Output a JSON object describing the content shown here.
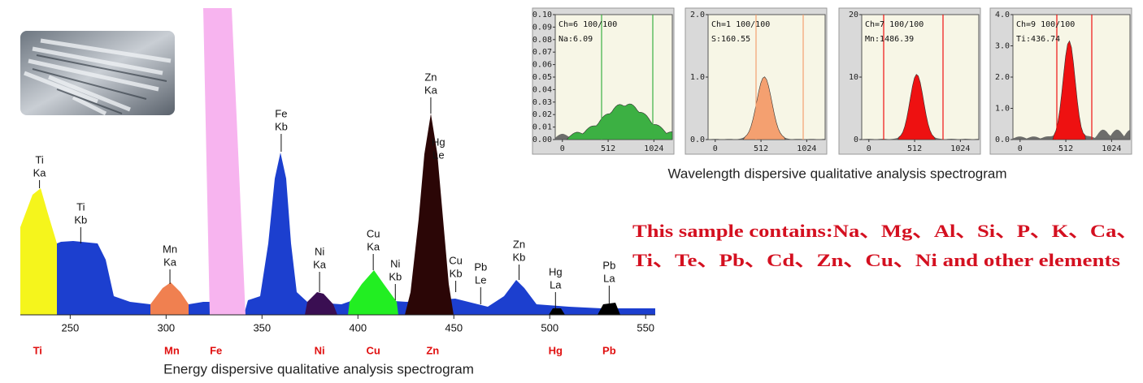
{
  "eds": {
    "caption": "Energy dispersive qualitative analysis spectrogram",
    "xlim": [
      224,
      555
    ],
    "xticks": [
      250,
      300,
      350,
      400,
      450,
      500,
      550
    ],
    "peaks": [
      {
        "lines": [
          "Ti",
          "Ka"
        ],
        "x": 234
      },
      {
        "lines": [
          "Ti",
          "Kb"
        ],
        "x": 255.5
      },
      {
        "lines": [
          "Mn",
          "Ka"
        ],
        "x": 302
      },
      {
        "lines": [
          "Fe",
          "Kb"
        ],
        "x": 360
      },
      {
        "lines": [
          "Ni",
          "Ka"
        ],
        "x": 380
      },
      {
        "lines": [
          "Cu",
          "Ka"
        ],
        "x": 408
      },
      {
        "lines": [
          "Ni",
          "Kb"
        ],
        "x": 419.5
      },
      {
        "lines": [
          "Zn",
          "Ka"
        ],
        "x": 438
      },
      {
        "lines": [
          "Hg",
          "Le"
        ],
        "x": 442
      },
      {
        "lines": [
          "Cu",
          "Kb"
        ],
        "x": 451
      },
      {
        "lines": [
          "Pb",
          "Le"
        ],
        "x": 464
      },
      {
        "lines": [
          "Zn",
          "Kb"
        ],
        "x": 484
      },
      {
        "lines": [
          "Hg",
          "La"
        ],
        "x": 503
      },
      {
        "lines": [
          "Pb",
          "La"
        ],
        "x": 531
      }
    ],
    "elements": [
      {
        "label": "Ti",
        "x": 233
      },
      {
        "label": "Mn",
        "x": 303
      },
      {
        "label": "Fe",
        "x": 326
      },
      {
        "label": "Ni",
        "x": 380
      },
      {
        "label": "Cu",
        "x": 408
      },
      {
        "label": "Zn",
        "x": 439
      },
      {
        "label": "Hg",
        "x": 503
      },
      {
        "label": "Pb",
        "x": 531
      }
    ]
  },
  "wds": {
    "caption": "Wavelength dispersive qualitative analysis spectrogram",
    "panels": [
      {
        "header": "Ch=6 100/100",
        "reading": "Na:6.09",
        "peak_color": "#3cb043",
        "ylim": [
          0,
          0.1
        ],
        "yticks": [
          {
            "value": 0,
            "label": "0.00"
          },
          {
            "value": 0.01,
            "label": "0.01"
          },
          {
            "value": 0.02,
            "label": "0.02"
          },
          {
            "value": 0.03,
            "label": "0.03"
          },
          {
            "value": 0.04,
            "label": "0.04"
          },
          {
            "value": 0.05,
            "label": "0.05"
          },
          {
            "value": 0.06,
            "label": "0.06"
          },
          {
            "value": 0.07,
            "label": "0.07"
          },
          {
            "value": 0.08,
            "label": "0.08"
          },
          {
            "value": 0.09,
            "label": "0.09"
          },
          {
            "value": 0.1,
            "label": "0.10"
          }
        ],
        "xlim": [
          -80,
          1230
        ],
        "xticks": [
          0,
          512,
          1024
        ]
      },
      {
        "header": "Ch=1 100/100",
        "reading": "S:160.55",
        "peak_color": "#f4a070",
        "ylim": [
          0,
          2
        ],
        "yticks": [
          {
            "value": 0,
            "label": "0.0"
          },
          {
            "value": 1,
            "label": "1.0"
          },
          {
            "value": 2,
            "label": "2.0"
          }
        ],
        "xlim": [
          -80,
          1230
        ],
        "xticks": [
          0,
          512,
          1024
        ]
      },
      {
        "header": "Ch=7 100/100",
        "reading": "Mn:1486.39",
        "peak_color": "#ee1111",
        "ylim": [
          0,
          20
        ],
        "yticks": [
          0,
          10,
          20
        ],
        "xlim": [
          -80,
          1230
        ],
        "xticks": [
          0,
          512,
          1024
        ]
      },
      {
        "header": "Ch=9 100/100",
        "reading": "Ti:436.74",
        "peak_color": "#ee1111",
        "ylim": [
          0,
          4
        ],
        "yticks": [
          {
            "value": 0,
            "label": "0.0"
          },
          {
            "value": 1,
            "label": "1.0"
          },
          {
            "value": 2,
            "label": "2.0"
          },
          {
            "value": 3,
            "label": "3.0"
          },
          {
            "value": 4,
            "label": "4.0"
          }
        ],
        "xlim": [
          -80,
          1230
        ],
        "xticks": [
          0,
          512,
          1024
        ]
      }
    ]
  },
  "summary": {
    "lines": [
      "This sample contains:Na、Mg、Al、Si、P、K、Ca、",
      "Ti、Te、Pb、Cd、Zn、Cu、Ni and other elements"
    ]
  }
}
